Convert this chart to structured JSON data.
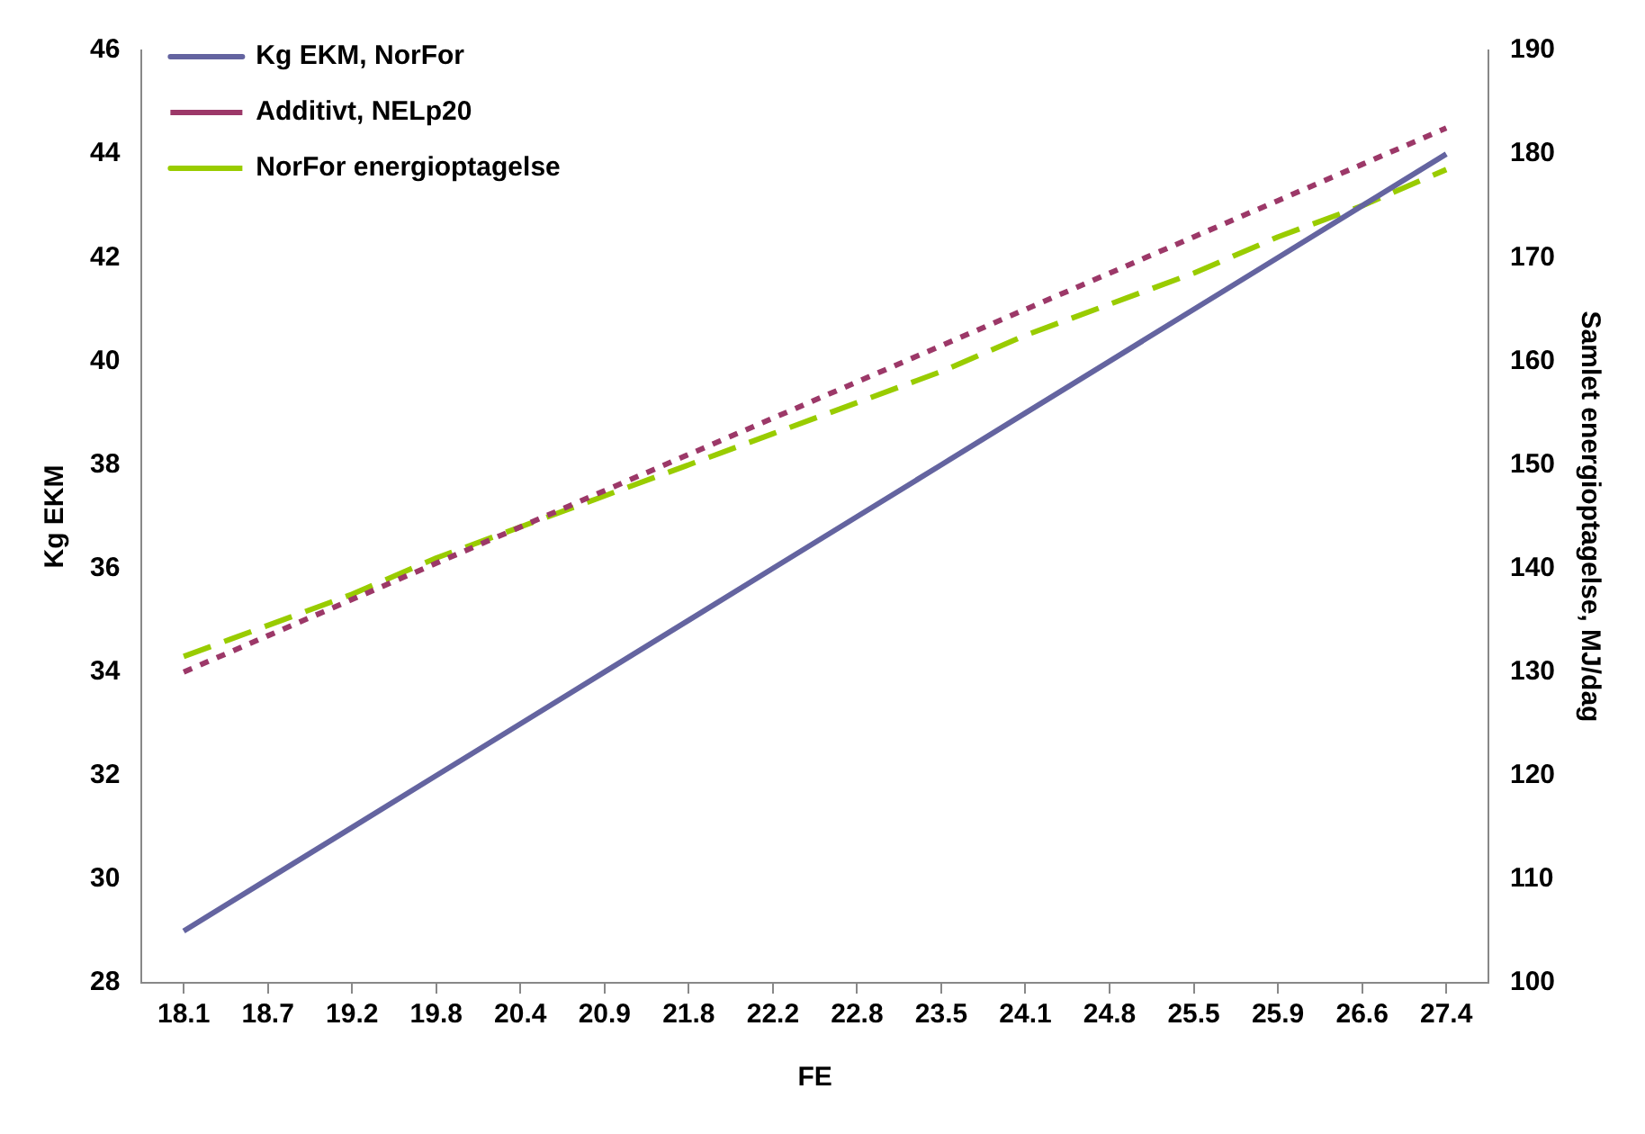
{
  "chart_data": {
    "type": "line",
    "xlabel": "FE",
    "ylabel": "Kg EKM",
    "y2label": "Samlet energioptagelse, MJ/dag",
    "categories": [
      "18.1",
      "18.7",
      "19.2",
      "19.8",
      "20.4",
      "20.9",
      "21.8",
      "22.2",
      "22.8",
      "23.5",
      "24.1",
      "24.8",
      "25.5",
      "25.9",
      "26.6",
      "27.4"
    ],
    "series": [
      {
        "name": "Kg EKM, NorFor",
        "color": "#6464a0",
        "line_style": "solid",
        "values": [
          29,
          30,
          31,
          32,
          33,
          34,
          35,
          36,
          37,
          38,
          39,
          40,
          41,
          42,
          43,
          44
        ]
      },
      {
        "name": "Additivt, NELp20",
        "color": "#9c3868",
        "line_style": "dotted",
        "axis": "y2",
        "values": [
          130,
          133.5,
          137,
          140.5,
          144,
          147.5,
          151,
          154.5,
          158,
          161.5,
          165,
          168.5,
          172,
          175.5,
          179,
          182.5
        ]
      },
      {
        "name": "NorFor energioptagelse",
        "color": "#99cc00",
        "line_style": "dashed",
        "axis": "y2",
        "values": [
          131.5,
          134.5,
          137.5,
          141,
          144,
          147,
          150,
          153,
          156,
          159,
          162.5,
          165.5,
          168.5,
          172,
          175,
          178.5
        ]
      }
    ],
    "ylim": [
      28,
      46
    ],
    "yticks": [
      28,
      30,
      32,
      34,
      36,
      38,
      40,
      42,
      44,
      46
    ],
    "y2lim": [
      100,
      190
    ],
    "y2ticks": [
      100,
      110,
      120,
      130,
      140,
      150,
      160,
      170,
      180,
      190
    ],
    "grid": false,
    "legend": "top left",
    "marker": "none"
  }
}
